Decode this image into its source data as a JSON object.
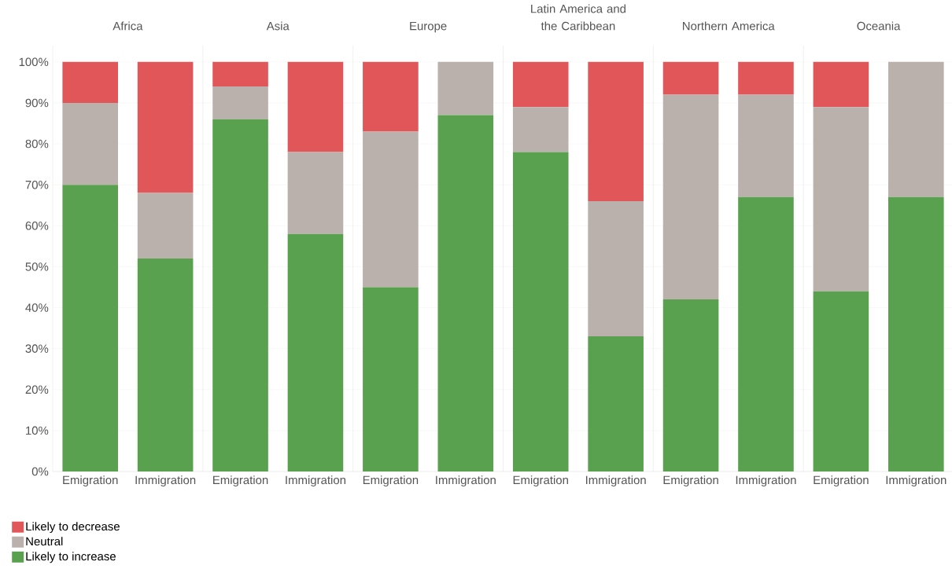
{
  "chart_data": [
    {
      "type": "bar",
      "title": "Africa",
      "categories": [
        "Emigration",
        "Immigration"
      ],
      "stacked": true,
      "ylim": [
        0,
        104
      ],
      "yticks": [
        {
          "value": 0,
          "label": "0%"
        },
        {
          "value": 10,
          "label": "10%"
        },
        {
          "value": 20,
          "label": "20%"
        },
        {
          "value": 30,
          "label": "30%"
        },
        {
          "value": 40,
          "label": "40%"
        },
        {
          "value": 50,
          "label": "50%"
        },
        {
          "value": 60,
          "label": "60%"
        },
        {
          "value": 70,
          "label": "70%"
        },
        {
          "value": 80,
          "label": "80%"
        },
        {
          "value": 90,
          "label": "90%"
        },
        {
          "value": 100,
          "label": "100%"
        }
      ],
      "grid": "y",
      "legend": "bottom left",
      "series": [
        {
          "name": "Likely to increase",
          "color": "#59a14f",
          "values": [
            70,
            52
          ]
        },
        {
          "name": "Neutral",
          "color": "#bab0ac",
          "values": [
            20,
            16
          ]
        },
        {
          "name": "Likely to decrease",
          "color": "#e15759",
          "values": [
            10,
            32
          ]
        }
      ]
    },
    {
      "type": "bar",
      "title": "Asia",
      "categories": [
        "Emigration",
        "Immigration"
      ],
      "stacked": true,
      "ylim": [
        0,
        104
      ],
      "yticks": [
        0,
        10,
        20,
        30,
        40,
        50,
        60,
        70,
        80,
        90,
        100
      ],
      "grid": "y",
      "tick_labels": "x",
      "series": [
        {
          "color": "#59a14f",
          "values": [
            86,
            58
          ]
        },
        {
          "color": "#bab0ac",
          "values": [
            8,
            20
          ]
        },
        {
          "color": "#e15759",
          "values": [
            6,
            22
          ]
        }
      ]
    },
    {
      "type": "bar",
      "title": "Europe",
      "categories": [
        "Emigration",
        "Immigration"
      ],
      "stacked": true,
      "ylim": [
        0,
        104
      ],
      "yticks": [
        0,
        10,
        20,
        30,
        40,
        50,
        60,
        70,
        80,
        90,
        100
      ],
      "grid": "y",
      "tick_labels": "x",
      "series": [
        {
          "color": "#59a14f",
          "values": [
            45,
            87
          ]
        },
        {
          "color": "#bab0ac",
          "values": [
            38,
            13
          ]
        },
        {
          "color": "#e15759",
          "values": [
            17,
            0
          ]
        }
      ]
    },
    {
      "type": "bar",
      "title": "Latin America and the Caribbean",
      "categories": [
        "Emigration",
        "Immigration"
      ],
      "stacked": true,
      "ylim": [
        0,
        104
      ],
      "yticks": [
        0,
        10,
        20,
        30,
        40,
        50,
        60,
        70,
        80,
        90,
        100
      ],
      "grid": "y",
      "tick_labels": "x",
      "series": [
        {
          "color": "#59a14f",
          "values": [
            78,
            33
          ]
        },
        {
          "color": "#bab0ac",
          "values": [
            11,
            33
          ]
        },
        {
          "color": "#e15759",
          "values": [
            11,
            34
          ]
        }
      ]
    },
    {
      "type": "bar",
      "title": "Northern America",
      "categories": [
        "Emigration",
        "Immigration"
      ],
      "stacked": true,
      "ylim": [
        0,
        104
      ],
      "yticks": [
        0,
        10,
        20,
        30,
        40,
        50,
        60,
        70,
        80,
        90,
        100
      ],
      "grid": "y",
      "tick_labels": "x",
      "series": [
        {
          "color": "#59a14f",
          "values": [
            42,
            67
          ]
        },
        {
          "color": "#bab0ac",
          "values": [
            50,
            25
          ]
        },
        {
          "color": "#e15759",
          "values": [
            8,
            8
          ]
        }
      ]
    },
    {
      "type": "bar",
      "title": "Oceania",
      "categories": [
        "Emigration",
        "Immigration"
      ],
      "stacked": true,
      "ylim": [
        0,
        104
      ],
      "yticks": [
        0,
        10,
        20,
        30,
        40,
        50,
        60,
        70,
        80,
        90,
        100
      ],
      "grid": "y",
      "tick_labels": "x",
      "series": [
        {
          "color": "#59a14f",
          "values": [
            44,
            67
          ]
        },
        {
          "color": "#bab0ac",
          "values": [
            45,
            33
          ]
        },
        {
          "color": "#e15759",
          "values": [
            11,
            0
          ]
        }
      ]
    }
  ]
}
